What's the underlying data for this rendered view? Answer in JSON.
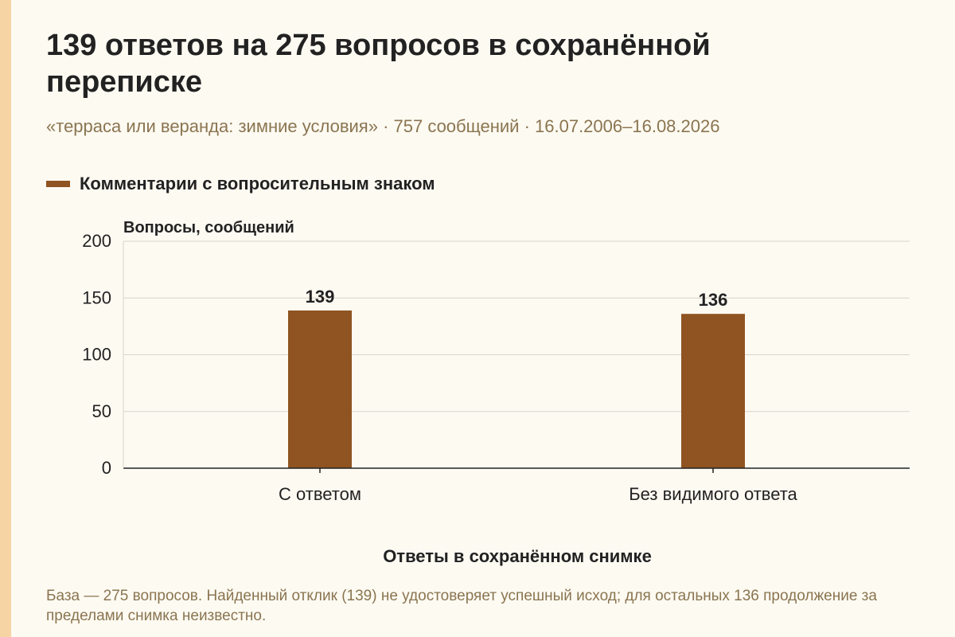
{
  "title": "139 ответов на 275 вопросов в сохранённой переписке",
  "subtitle": "«терраса или веранда: зимние условия» · 757 сообщений · 16.07.2006–16.08.2026",
  "footnote": "База — 275 вопросов. Найденный отклик (139) не удостоверяет успешный исход; для остальных 136 продолжение за пределами снимка неизвестно.",
  "colors": {
    "bar": "#8f5421",
    "accent": "#f6d4a3",
    "muted_text": "#8a7550",
    "grid": "#d9d4c8",
    "axis": "#222222"
  },
  "chart_data": {
    "type": "bar",
    "categories": [
      "С ответом",
      "Без видимого ответа"
    ],
    "series": [
      {
        "name": "Комментарии с вопросительным знаком",
        "values": [
          139,
          136
        ]
      }
    ],
    "data_labels": [
      "139",
      "136"
    ],
    "ylabel": "Вопросы, сообщений",
    "xlabel": "Ответы в сохранённом снимке",
    "ylim": [
      0,
      200
    ],
    "yticks": [
      0,
      50,
      100,
      150,
      200
    ],
    "ytick_labels": [
      "0",
      "50",
      "100",
      "150",
      "200"
    ],
    "grid": true,
    "legend_position": "top-left"
  }
}
